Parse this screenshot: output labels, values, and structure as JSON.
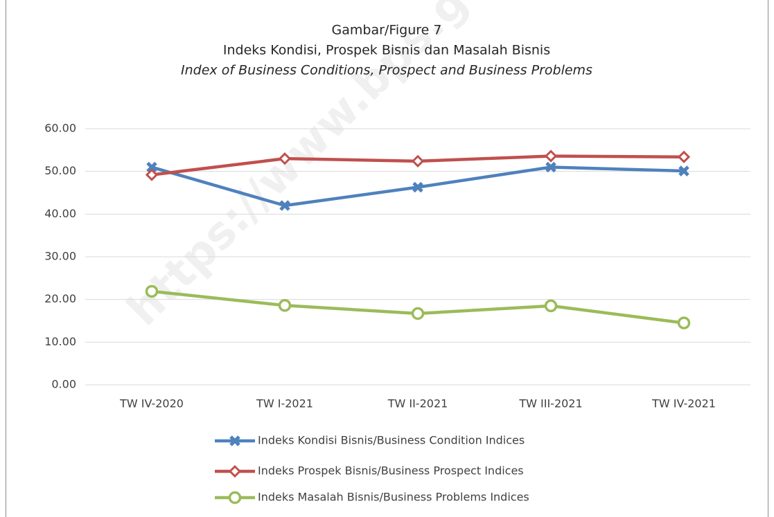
{
  "chart_data": {
    "type": "line",
    "title": "Gambar/Figure  7",
    "subtitle": [
      "Indeks Kondisi, Prospek Bisnis dan Masalah Bisnis",
      "Index of Business Conditions, Prospect and Business Problems"
    ],
    "watermark": "https://www.bps.go.id",
    "categories": [
      "TW IV-2020",
      "TW I-2021",
      "TW II-2021",
      "TW III-2021",
      "TW IV-2021"
    ],
    "series": [
      {
        "name": "Indeks Kondisi Bisnis/Business Condition Indices",
        "color": "#4f81bd",
        "marker": "x",
        "values": [
          51.0,
          42.0,
          46.3,
          51.0,
          50.1
        ]
      },
      {
        "name": "Indeks Prospek Bisnis/Business Prospect Indices",
        "color": "#c0504d",
        "marker": "diamond",
        "values": [
          49.2,
          53.0,
          52.4,
          53.6,
          53.4
        ]
      },
      {
        "name": "Indeks Masalah Bisnis/Business Problems Indices",
        "color": "#9bbb59",
        "marker": "circle",
        "values": [
          21.9,
          18.6,
          16.7,
          18.5,
          14.5
        ]
      }
    ],
    "ylim": [
      0,
      60
    ],
    "yticks": [
      {
        "value": 0,
        "label": "0.00"
      },
      {
        "value": 10,
        "label": "10.00"
      },
      {
        "value": 20,
        "label": "20.00"
      },
      {
        "value": 30,
        "label": "30.00"
      },
      {
        "value": 40,
        "label": "40.00"
      },
      {
        "value": 50,
        "label": "50.00"
      },
      {
        "value": 60,
        "label": "60.00"
      }
    ],
    "grid": true,
    "legend": "bottom"
  }
}
